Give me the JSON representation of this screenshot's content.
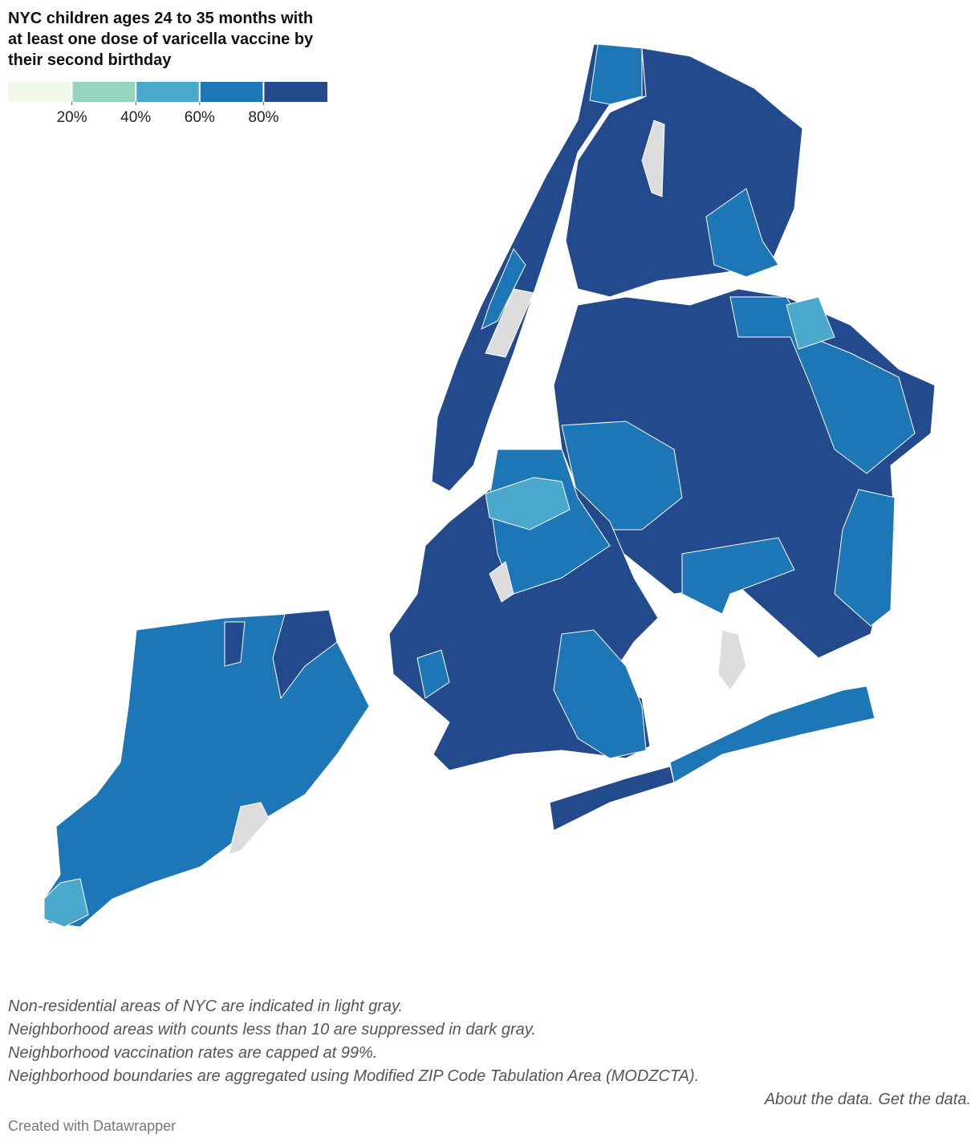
{
  "header": {
    "title": "NYC children ages 24 to 35 months with at least one dose of varicella vaccine by their second birthday"
  },
  "legend": {
    "colors": [
      "#f0f9e8",
      "#96d4c0",
      "#4aa8cc",
      "#1d76b6",
      "#234a8c"
    ],
    "lim": [
      0,
      100
    ],
    "ticks": [
      {
        "value": 20,
        "label": "20%"
      },
      {
        "value": 40,
        "label": "40%"
      },
      {
        "value": 60,
        "label": "60%"
      },
      {
        "value": 80,
        "label": "80%"
      }
    ]
  },
  "notes": [
    "Non-residential areas of NYC are indicated in light gray.",
    "Neighborhood areas with counts less than 10 are suppressed in dark gray.",
    "Neighborhood vaccination rates are capped at 99%.",
    "Neighborhood boundaries are aggregated using Modified ZIP Code Tabulation Area (MODZCTA)."
  ],
  "links": [
    "About the data.",
    "Get the data."
  ],
  "credit": "Created with Datawrapper"
}
